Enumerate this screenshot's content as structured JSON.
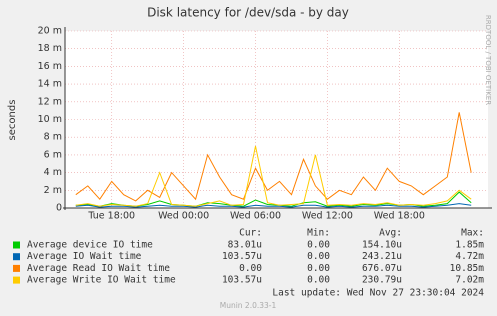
{
  "chart_data": {
    "type": "line",
    "title": "Disk latency for /dev/sda - by day",
    "y_label": "seconds",
    "side_label": "RRDTOOL / TOBI OETIKER",
    "xlim": [
      14.1,
      49.4
    ],
    "xticks": [
      {
        "value": 18,
        "label": "Tue 18:00"
      },
      {
        "value": 24,
        "label": "Wed 00:00"
      },
      {
        "value": 30,
        "label": "Wed 06:00"
      },
      {
        "value": 36,
        "label": "Wed 12:00"
      },
      {
        "value": 42,
        "label": "Wed 18:00"
      }
    ],
    "ylim": [
      0,
      0.02
    ],
    "yticks": [
      0,
      {
        "value": 0.002,
        "label": "2 m"
      },
      {
        "value": 0.004,
        "label": "4 m"
      },
      {
        "value": 0.006,
        "label": "6 m"
      },
      {
        "value": 0.008,
        "label": "8 m"
      },
      {
        "value": 0.01,
        "label": "10 m"
      },
      {
        "value": 0.012,
        "label": "12 m"
      },
      {
        "value": 0.014,
        "label": "14 m"
      },
      {
        "value": 0.016,
        "label": "16 m"
      },
      {
        "value": 0.018,
        "label": "18 m"
      },
      {
        "value": 0.02,
        "label": "20 m"
      }
    ],
    "grid": true,
    "x": [
      15,
      16,
      17,
      18,
      19,
      20,
      21,
      22,
      23,
      24,
      25,
      26,
      27,
      28,
      29,
      30,
      31,
      32,
      33,
      34,
      35,
      36,
      37,
      38,
      39,
      40,
      41,
      42,
      43,
      44,
      45,
      46,
      47,
      48
    ],
    "series": [
      {
        "name": "Average device IO time",
        "color": "#00cc00",
        "values": [
          0.0003,
          0.0004,
          0.0002,
          0.0005,
          0.0003,
          0.0002,
          0.0004,
          0.0008,
          0.0004,
          0.0003,
          0.0002,
          0.0006,
          0.0005,
          0.0003,
          0.0002,
          0.0009,
          0.0004,
          0.0003,
          0.0002,
          0.0006,
          0.0007,
          0.0002,
          0.0003,
          0.0002,
          0.0004,
          0.0003,
          0.0005,
          0.0003,
          0.0004,
          0.0002,
          0.0003,
          0.0005,
          0.0018,
          0.0006
        ]
      },
      {
        "name": "Average IO Wait time",
        "color": "#0066b3",
        "values": [
          0.0002,
          0.0003,
          0.0001,
          0.0002,
          0.0002,
          0.0001,
          0.0002,
          0.0003,
          0.0002,
          0.0002,
          0.0001,
          0.0003,
          0.0002,
          0.0002,
          0.0001,
          0.0003,
          0.0002,
          0.0002,
          0.0001,
          0.0003,
          0.0003,
          0.0001,
          0.0002,
          0.0001,
          0.0002,
          0.0002,
          0.0003,
          0.0002,
          0.0002,
          0.0001,
          0.0002,
          0.0003,
          0.0005,
          0.0003
        ]
      },
      {
        "name": "Average Read IO Wait time",
        "color": "#ff8000",
        "values": [
          0.0015,
          0.0025,
          0.001,
          0.003,
          0.0015,
          0.0008,
          0.002,
          0.0012,
          0.004,
          0.0025,
          0.001,
          0.006,
          0.0035,
          0.0015,
          0.001,
          0.0045,
          0.002,
          0.003,
          0.0015,
          0.0055,
          0.0025,
          0.001,
          0.002,
          0.0015,
          0.0035,
          0.002,
          0.0045,
          0.003,
          0.0025,
          0.0015,
          0.0025,
          0.0035,
          0.0108,
          0.004
        ]
      },
      {
        "name": "Average Write IO Wait time",
        "color": "#ffcc00",
        "values": [
          0.0003,
          0.0005,
          0.0002,
          0.0004,
          0.0003,
          0.0002,
          0.0005,
          0.004,
          0.0004,
          0.0003,
          0.0002,
          0.0005,
          0.0008,
          0.0003,
          0.0004,
          0.007,
          0.0006,
          0.0003,
          0.0004,
          0.0005,
          0.006,
          0.0003,
          0.0004,
          0.0003,
          0.0005,
          0.0004,
          0.0006,
          0.0003,
          0.0004,
          0.0003,
          0.0005,
          0.0008,
          0.002,
          0.001
        ]
      }
    ],
    "legend_table": {
      "headers": [
        "Cur:",
        "Min:",
        "Avg:",
        "Max:"
      ],
      "rows": [
        [
          "83.01u",
          "0.00",
          "154.10u",
          "1.85m"
        ],
        [
          "103.57u",
          "0.00",
          "243.21u",
          "4.72m"
        ],
        [
          "0.00",
          "0.00",
          "676.07u",
          "10.85m"
        ],
        [
          "103.57u",
          "0.00",
          "230.79u",
          "7.02m"
        ]
      ]
    },
    "last_update": "Last update:  Wed Nov 27 23:30:04 2024",
    "footer": "Munin 2.0.33-1"
  }
}
